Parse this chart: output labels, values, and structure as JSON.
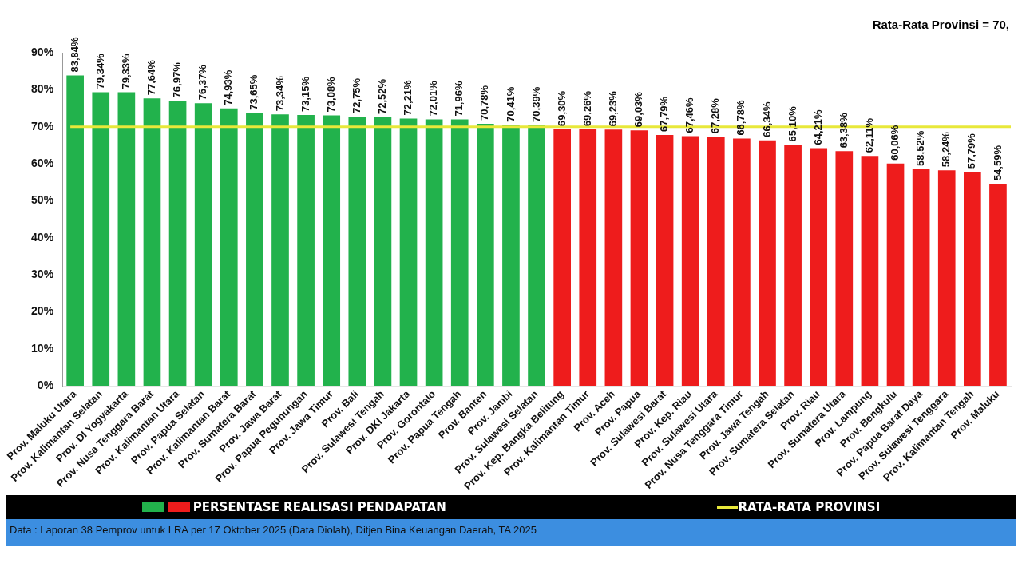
{
  "chart_data": {
    "type": "bar",
    "categories": [
      "Prov. Maluku Utara",
      "Prov. Kalimantan Selatan",
      "Prov. DI Yogyakarta",
      "Prov. Nusa Tenggara Barat",
      "Prov. Kalimantan Utara",
      "Prov. Papua Selatan",
      "Prov. Kalimantan Barat",
      "Prov. Sumatera Barat",
      "Prov. Jawa Barat",
      "Prov. Papua Pegunungan",
      "Prov. Jawa Timur",
      "Prov. Bali",
      "Prov. Sulawesi Tengah",
      "Prov. DKI Jakarta",
      "Prov. Gorontalo",
      "Prov. Papua Tengah",
      "Prov. Banten",
      "Prov. Jambi",
      "Prov. Sulawesi Selatan",
      "Prov. Kep. Bangka Belitung",
      "Prov. Kalimantan Timur",
      "Prov. Aceh",
      "Prov. Papua",
      "Prov. Sulawesi Barat",
      "Prov. Kep. Riau",
      "Prov. Sulawesi Utara",
      "Prov. Nusa Tenggara Timur",
      "Prov. Jawa Tengah",
      "Prov. Sumatera Selatan",
      "Prov. Riau",
      "Prov. Sumatera Utara",
      "Prov. Lampung",
      "Prov. Bengkulu",
      "Prov. Papua Barat Daya",
      "Prov. Sulawesi Tenggara",
      "Prov. Kalimantan Tengah",
      "Prov. Maluku"
    ],
    "series": [
      {
        "name": "PERSENTASE REALISASI PENDAPATAN",
        "values": [
          83.84,
          79.34,
          79.33,
          77.64,
          76.97,
          76.37,
          74.93,
          73.65,
          73.34,
          73.15,
          73.08,
          72.75,
          72.52,
          72.21,
          72.01,
          71.96,
          70.78,
          70.41,
          70.39,
          69.3,
          69.26,
          69.23,
          69.03,
          67.79,
          67.46,
          67.28,
          66.78,
          66.34,
          65.1,
          64.21,
          63.38,
          62.11,
          60.06,
          58.52,
          58.24,
          57.79,
          54.59
        ],
        "colors": [
          "#22b24c",
          "#22b24c",
          "#22b24c",
          "#22b24c",
          "#22b24c",
          "#22b24c",
          "#22b24c",
          "#22b24c",
          "#22b24c",
          "#22b24c",
          "#22b24c",
          "#22b24c",
          "#22b24c",
          "#22b24c",
          "#22b24c",
          "#22b24c",
          "#22b24c",
          "#22b24c",
          "#22b24c",
          "#ee1c1c",
          "#ee1c1c",
          "#ee1c1c",
          "#ee1c1c",
          "#ee1c1c",
          "#ee1c1c",
          "#ee1c1c",
          "#ee1c1c",
          "#ee1c1c",
          "#ee1c1c",
          "#ee1c1c",
          "#ee1c1c",
          "#ee1c1c",
          "#ee1c1c",
          "#ee1c1c",
          "#ee1c1c",
          "#ee1c1c",
          "#ee1c1c"
        ],
        "value_labels": [
          "83,84%",
          "79,34%",
          "79,33%",
          "77,64%",
          "76,97%",
          "76,37%",
          "74,93%",
          "73,65%",
          "73,34%",
          "73,15%",
          "73,08%",
          "72,75%",
          "72,52%",
          "72,21%",
          "72,01%",
          "71,96%",
          "70,78%",
          "70,41%",
          "70,39%",
          "69,30%",
          "69,26%",
          "69,23%",
          "69,03%",
          "67,79%",
          "67,46%",
          "67,28%",
          "66,78%",
          "66,34%",
          "65,10%",
          "64,21%",
          "63,38%",
          "62,11%",
          "60,06%",
          "58,52%",
          "58,24%",
          "57,79%",
          "54,59%"
        ]
      }
    ],
    "ylim": [
      0,
      90
    ],
    "yticks": [
      {
        "value": 0,
        "label": "0%"
      },
      {
        "value": 10,
        "label": "10%"
      },
      {
        "value": 20,
        "label": "20%"
      },
      {
        "value": 30,
        "label": "30%"
      },
      {
        "value": 40,
        "label": "40%"
      },
      {
        "value": 50,
        "label": "50%"
      },
      {
        "value": 60,
        "label": "60%"
      },
      {
        "value": 70,
        "label": "70%"
      },
      {
        "value": 80,
        "label": "80%"
      },
      {
        "value": 90,
        "label": "90%"
      }
    ],
    "ref_lines": [
      {
        "axis": "y",
        "value": 70,
        "label": "RATA-RATA PROVINSI",
        "color": "#e8e83a"
      }
    ],
    "grid": false,
    "legend": "bottom",
    "annotations": [
      "Rata-Rata Provinsi = 70,",
      "Data : Laporan 38 Pemprov untuk LRA per 17 Oktober 2025 (Data Diolah), Ditjen Bina Keuangan Daerah, TA 2025"
    ]
  }
}
